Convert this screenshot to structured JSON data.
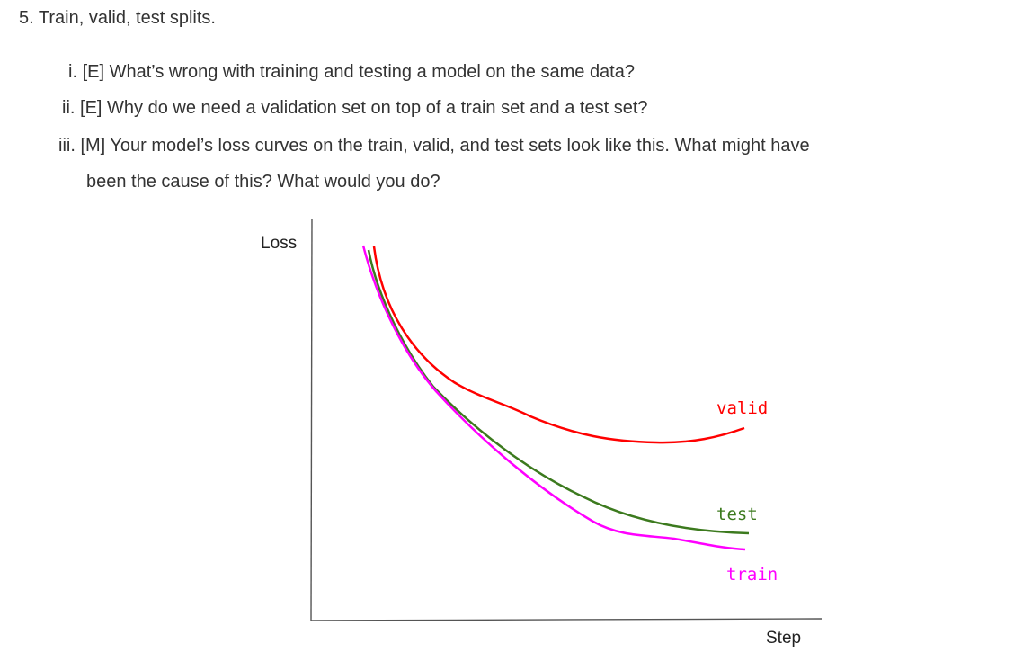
{
  "heading": "5. Train, valid, test splits.",
  "questions": [
    {
      "num": "i.",
      "text": "[E] What’s wrong with training and testing a model on the same data?"
    },
    {
      "num": "ii.",
      "text": "[E] Why do we need a validation set on top of a train set and a test set?"
    },
    {
      "num": "iii.",
      "text": "[M] Your model’s loss curves on the train, valid, and test sets look like this. What might have",
      "continuation": "been the cause of this? What would you do?"
    }
  ],
  "chart_data": {
    "type": "line",
    "title": "",
    "xlabel": "Step",
    "ylabel": "Loss",
    "grid": false,
    "legend": "inline labels at right end of curves",
    "series": [
      {
        "name": "valid",
        "color": "#ff0000"
      },
      {
        "name": "test",
        "color": "#3c7a1e"
      },
      {
        "name": "train",
        "color": "#ff00ff"
      }
    ]
  }
}
